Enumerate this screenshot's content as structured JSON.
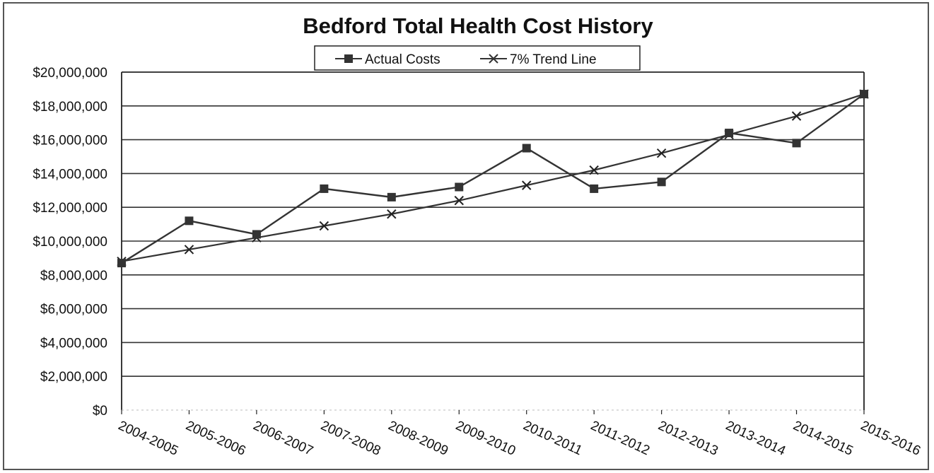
{
  "chart_data": {
    "type": "line",
    "title": "Bedford Total Health Cost History",
    "xlabel": "",
    "ylabel": "",
    "categories": [
      "2004-2005",
      "2005-2006",
      "2006-2007",
      "2007-2008",
      "2008-2009",
      "2009-2010",
      "2010-2011",
      "2011-2012",
      "2012-2013",
      "2013-2014",
      "2014-2015",
      "2015-2016"
    ],
    "y_ticks": [
      "$0",
      "$2,000,000",
      "$4,000,000",
      "$6,000,000",
      "$8,000,000",
      "$10,000,000",
      "$12,000,000",
      "$14,000,000",
      "$16,000,000",
      "$18,000,000",
      "$20,000,000"
    ],
    "ylim": [
      0,
      20000000
    ],
    "grid": true,
    "legend_position": "top-center",
    "series": [
      {
        "name": "Actual Costs",
        "marker": "square",
        "values": [
          8700000,
          11200000,
          10400000,
          13100000,
          12600000,
          13200000,
          15500000,
          13100000,
          13500000,
          16400000,
          15800000,
          18700000
        ]
      },
      {
        "name": "7% Trend Line",
        "marker": "x",
        "values": [
          8800000,
          9500000,
          10200000,
          10900000,
          11600000,
          12400000,
          13300000,
          14200000,
          15200000,
          16300000,
          17400000,
          18700000
        ]
      }
    ]
  }
}
